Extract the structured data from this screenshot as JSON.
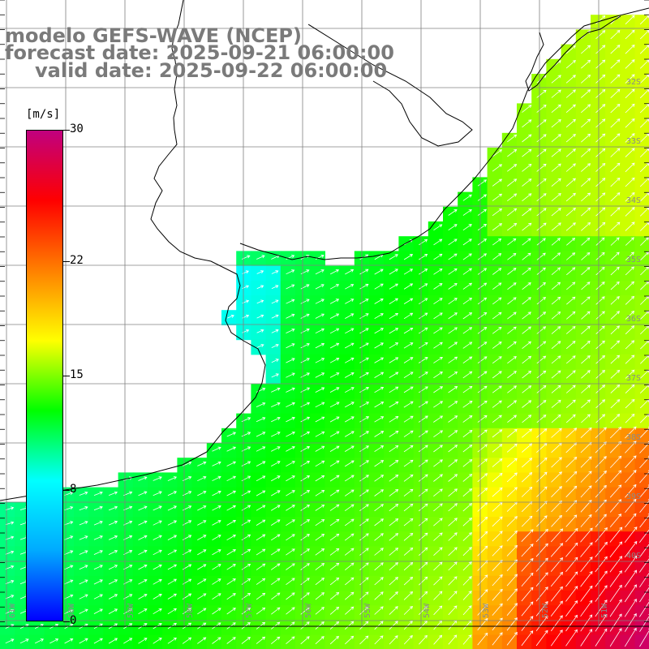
{
  "title": {
    "line1": "modelo GEFS-WAVE (NCEP)",
    "line2": "forecast date: 2025-09-21 06:00:00",
    "line3": "valid date: 2025-09-22 06:00:00"
  },
  "colorbar": {
    "unit": "[m/s]",
    "ticks": [
      "30",
      "22",
      "15",
      "8",
      "0"
    ],
    "tick_values": [
      30,
      22,
      15,
      8,
      0
    ],
    "min": 0,
    "max": 30,
    "colors": [
      "#0000ff",
      "#00aaff",
      "#00ffff",
      "#00ff00",
      "#ffff00",
      "#ff8000",
      "#ff0000",
      "#c0007f"
    ]
  },
  "map": {
    "lat_labels": [
      "32S",
      "33S",
      "34S",
      "35S",
      "36S",
      "37S",
      "38S",
      "39S",
      "40S"
    ],
    "lon_labels": [
      "61W",
      "60W",
      "59W",
      "58W",
      "57W",
      "56W",
      "55W",
      "54W",
      "53W",
      "52W",
      "51W"
    ],
    "land_color": "#ffffff",
    "coast_color": "#000000",
    "grid_color": "#808080",
    "arrow_color": "#ffffff"
  }
}
